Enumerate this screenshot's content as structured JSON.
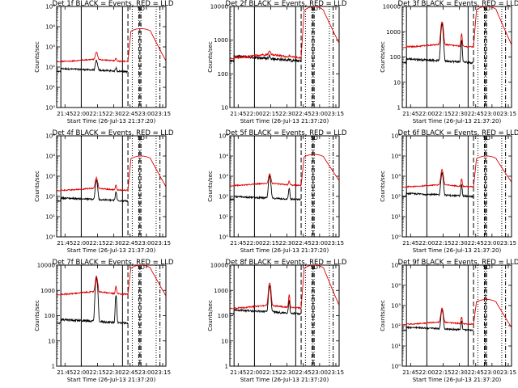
{
  "chart_data": {
    "type": "line",
    "x_tick_labels": [
      "21:45",
      "22:00",
      "22:15",
      "22:30",
      "22:45",
      "23:00",
      "23:15"
    ],
    "x_tick_times_min": [
      1305,
      1320,
      1335,
      1350,
      1365,
      1380,
      1395
    ],
    "xlim_min": [
      1297.33,
      1398
    ],
    "xlabel": "Start Time (26-Jul-13 21:37:20)",
    "ylabel": "Counts/sec",
    "yscale": "log",
    "colors": {
      "events": "#000000",
      "lld": "#e00000"
    },
    "marker_labels": [
      "S",
      "D"
    ],
    "vline_solid_min": [
      1301.2,
      1320,
      1358
    ],
    "vline_dashed_min": [
      1363,
      1374
    ],
    "vline_dotted_min": [
      1367,
      1389
    ],
    "vline_dashdot_min": [
      1373,
      1375,
      1392.5
    ],
    "panels": [
      {
        "title": "Det 1f BLACK = Events, RED = LLD",
        "ylim": [
          1,
          100000
        ],
        "y_tick_labels": [
          "10⁰",
          "10¹",
          "10²",
          "10³",
          "10⁴",
          "10⁵"
        ],
        "y_tick_values": [
          1,
          10,
          100,
          1000,
          10000,
          100000
        ],
        "events_base": 60,
        "events_peak": 200,
        "lld_base": 190,
        "lld_peak": 500,
        "lld_top": 8000,
        "burst_peak": 8000,
        "end_value": 200
      },
      {
        "title": "Det 2f BLACK = Events, RED = LLD",
        "ylim": [
          10,
          10000
        ],
        "y_tick_labels": [
          "10",
          "100",
          "1000",
          "10000"
        ],
        "y_tick_values": [
          10,
          100,
          1000,
          10000
        ],
        "events_base": 240,
        "events_peak": 300,
        "lld_base": 300,
        "lld_peak": 400,
        "lld_top": 10000,
        "burst_peak": 10000,
        "end_value": 800
      },
      {
        "title": "Det 3f BLACK = Events, RED = LLD",
        "ylim": [
          1,
          10000
        ],
        "y_tick_labels": [
          "1",
          "10",
          "100",
          "1000",
          "10000"
        ],
        "y_tick_values": [
          1,
          10,
          100,
          1000,
          10000
        ],
        "events_base": 60,
        "events_peak": 2000,
        "lld_base": 250,
        "lld_peak": 2500,
        "lld_top": 10000,
        "burst_peak": 10000,
        "end_value": 300
      },
      {
        "title": "Det 4f BLACK = Events, RED = LLD",
        "ylim": [
          1,
          100000
        ],
        "y_tick_labels": [
          "10⁰",
          "10¹",
          "10²",
          "10³",
          "10⁴",
          "10⁵"
        ],
        "y_tick_values": [
          1,
          10,
          100,
          1000,
          10000,
          100000
        ],
        "events_base": 60,
        "events_peak": 600,
        "lld_base": 200,
        "lld_peak": 800,
        "lld_top": 10000,
        "burst_peak": 10000,
        "end_value": 300
      },
      {
        "title": "Det 5f BLACK = Events, RED = LLD",
        "ylim": [
          1,
          100000
        ],
        "y_tick_labels": [
          "10⁰",
          "10¹",
          "10²",
          "10³",
          "10⁴",
          "10⁵"
        ],
        "y_tick_values": [
          1,
          10,
          100,
          1000,
          10000,
          100000
        ],
        "events_base": 70,
        "events_peak": 1000,
        "lld_base": 350,
        "lld_peak": 1200,
        "lld_top": 12000,
        "burst_peak": 12000,
        "end_value": 600
      },
      {
        "title": "Det 6f BLACK = Events, RED = LLD",
        "ylim": [
          1,
          100000
        ],
        "y_tick_labels": [
          "10⁰",
          "10¹",
          "10²",
          "10³",
          "10⁴",
          "10⁵"
        ],
        "y_tick_values": [
          1,
          10,
          100,
          1000,
          10000,
          100000
        ],
        "events_base": 100,
        "events_peak": 1500,
        "lld_base": 300,
        "lld_peak": 2000,
        "lld_top": 10000,
        "burst_peak": 10000,
        "end_value": 500
      },
      {
        "title": "Det 7f BLACK = Events, RED = LLD",
        "ylim": [
          1,
          10000
        ],
        "y_tick_labels": [
          "1",
          "10",
          "100",
          "1000",
          "10000"
        ],
        "y_tick_values": [
          1,
          10,
          100,
          1000,
          10000
        ],
        "events_base": 50,
        "events_peak": 3000,
        "lld_base": 700,
        "lld_peak": 3500,
        "lld_top": 10000,
        "burst_peak": 10000,
        "end_value": 600
      },
      {
        "title": "Det 8f BLACK = Events, RED = LLD",
        "ylim": [
          1,
          10000
        ],
        "y_tick_labels": [
          "1",
          "10",
          "100",
          "1000",
          "10000"
        ],
        "y_tick_values": [
          1,
          10,
          100,
          1000,
          10000
        ],
        "events_base": 120,
        "events_peak": 1500,
        "lld_base": 200,
        "lld_peak": 2000,
        "lld_top": 10000,
        "burst_peak": 10000,
        "end_value": 250
      },
      {
        "title": "Det 9f BLACK = Events, RED = LLD",
        "ylim": [
          1,
          100000
        ],
        "y_tick_labels": [
          "10⁰",
          "10¹",
          "10²",
          "10³",
          "10⁴",
          "10⁵"
        ],
        "y_tick_values": [
          1,
          10,
          100,
          1000,
          10000,
          100000
        ],
        "events_base": 60,
        "events_peak": 600,
        "lld_base": 120,
        "lld_peak": 700,
        "lld_top": 2000,
        "burst_peak": 2000,
        "end_value": 80
      }
    ]
  }
}
